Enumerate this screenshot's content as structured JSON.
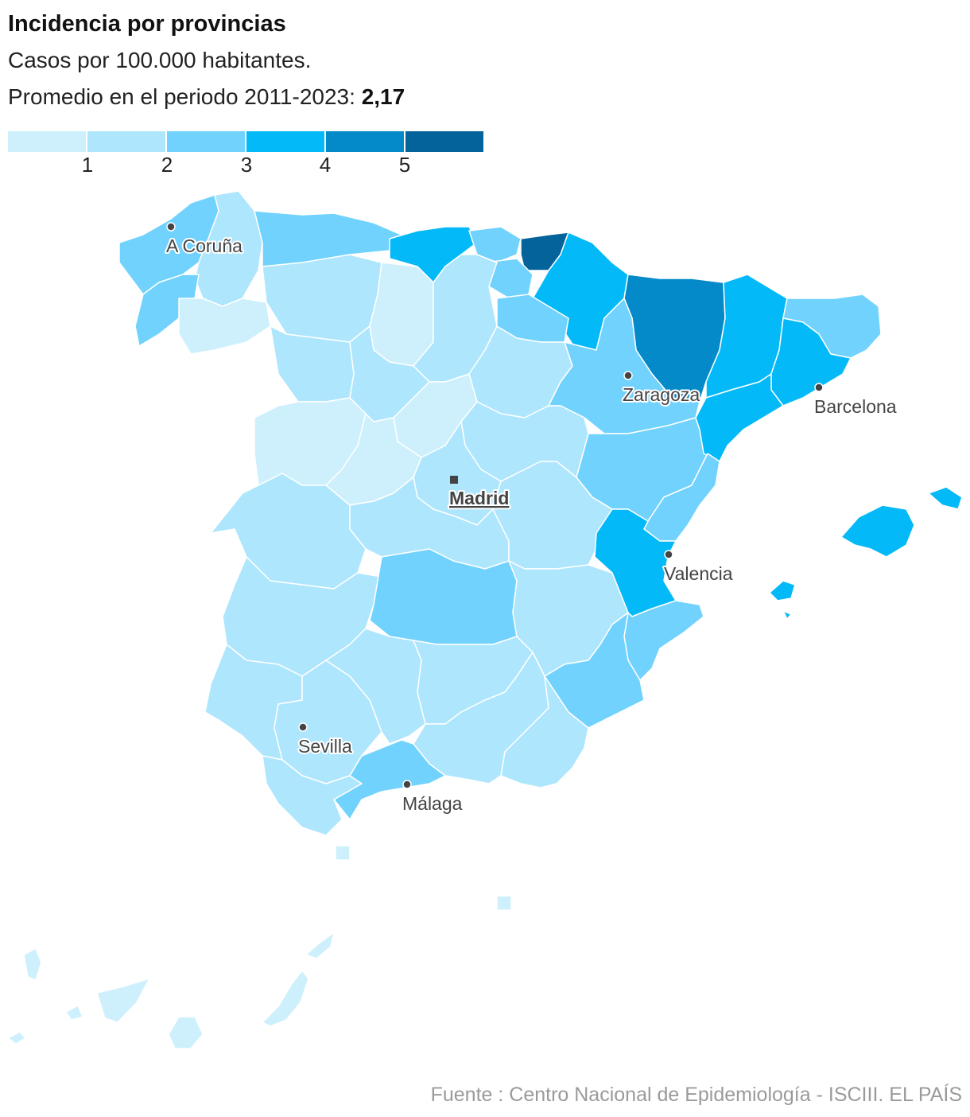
{
  "header": {
    "title": "Incidencia por provincias",
    "subtitle": "Casos por 100.000 habitantes.",
    "average_prefix": "Promedio en el periodo 2011-2023:",
    "average_value": "2,17"
  },
  "legend": {
    "colors": [
      "#cdf0fc",
      "#aee6fd",
      "#70d2fd",
      "#04b9f7",
      "#0489c9",
      "#04639a"
    ],
    "ticks": [
      "1",
      "2",
      "3",
      "4",
      "5"
    ]
  },
  "cities": {
    "coruna": "A Coruña",
    "zaragoza": "Zaragoza",
    "barcelona": "Barcelona",
    "madrid": "Madrid",
    "valencia": "Valencia",
    "sevilla": "Sevilla",
    "malaga": "Málaga"
  },
  "source": "Fuente : Centro Nacional de Epidemiología - ISCIII. EL PAÍS"
}
